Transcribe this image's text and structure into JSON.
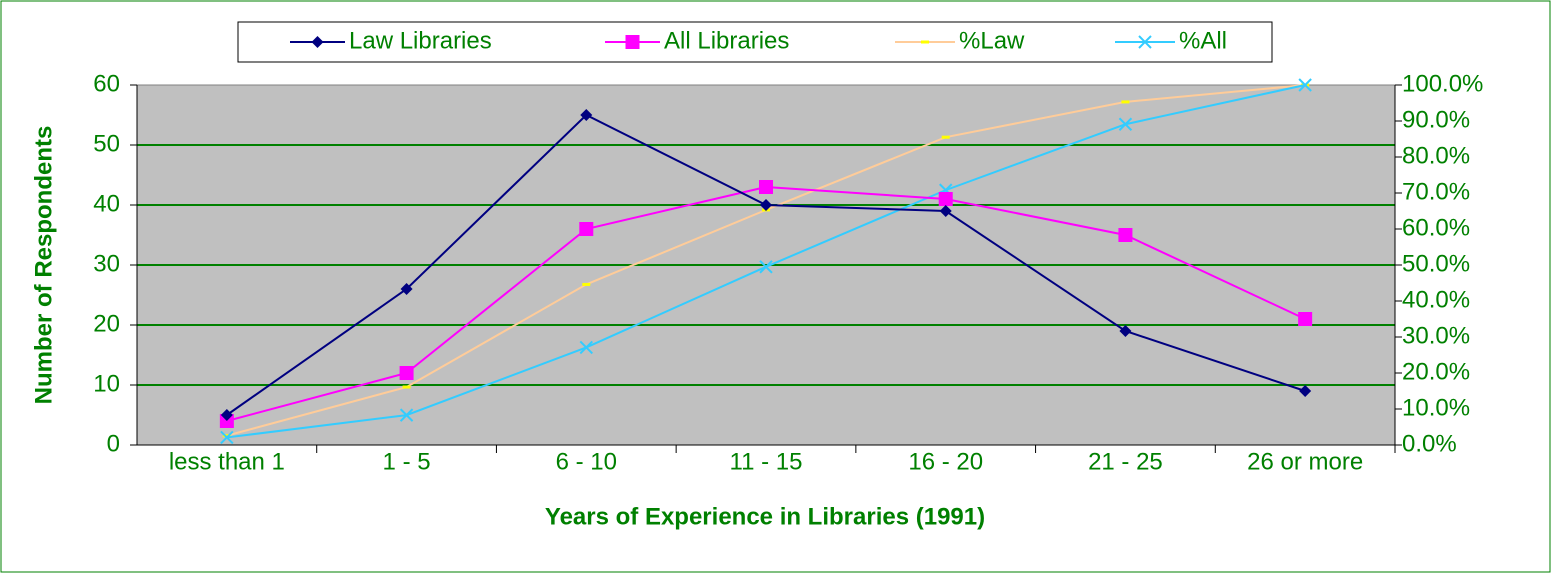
{
  "chart_data": {
    "type": "line",
    "xlabel": "Years of Experience in Libraries (1991)",
    "ylabel": "Number of Respondents",
    "categories": [
      "less than 1",
      "1 - 5",
      "6 - 10",
      "11 - 15",
      "16 - 20",
      "21 - 25",
      "26 or more"
    ],
    "series": [
      {
        "name": "Law Libraries",
        "color": "#000080",
        "marker": "diamond",
        "values": [
          5,
          26,
          55,
          40,
          39,
          19,
          9
        ]
      },
      {
        "name": "All Libraries",
        "color": "#ff00ff",
        "marker": "square",
        "values": [
          4,
          12,
          36,
          43,
          41,
          35,
          21
        ]
      },
      {
        "name": "%Law",
        "color": "#ffcc99",
        "marker": "dash",
        "axis": "y2",
        "values": [
          2.6,
          16.1,
          44.6,
          65.3,
          85.5,
          95.3,
          100
        ]
      },
      {
        "name": "%All",
        "color": "#33ccff",
        "marker": "x",
        "axis": "y2",
        "values": [
          2.1,
          8.3,
          27.1,
          49.5,
          70.8,
          89.1,
          100
        ]
      }
    ],
    "ylim": [
      0,
      60
    ],
    "yticks": [
      0,
      10,
      20,
      30,
      40,
      50,
      60
    ],
    "y2lim": [
      0,
      100
    ],
    "y2ticks": [
      {
        "value": 0,
        "label": "0.0%"
      },
      {
        "value": 10,
        "label": "10.0%"
      },
      {
        "value": 20,
        "label": "20.0%"
      },
      {
        "value": 30,
        "label": "30.0%"
      },
      {
        "value": 40,
        "label": "40.0%"
      },
      {
        "value": 50,
        "label": "50.0%"
      },
      {
        "value": 60,
        "label": "60.0%"
      },
      {
        "value": 70,
        "label": "70.0%"
      },
      {
        "value": 80,
        "label": "80.0%"
      },
      {
        "value": 90,
        "label": "90.0%"
      },
      {
        "value": 100,
        "label": "100.0%"
      }
    ],
    "grid": true,
    "legend": "top"
  }
}
